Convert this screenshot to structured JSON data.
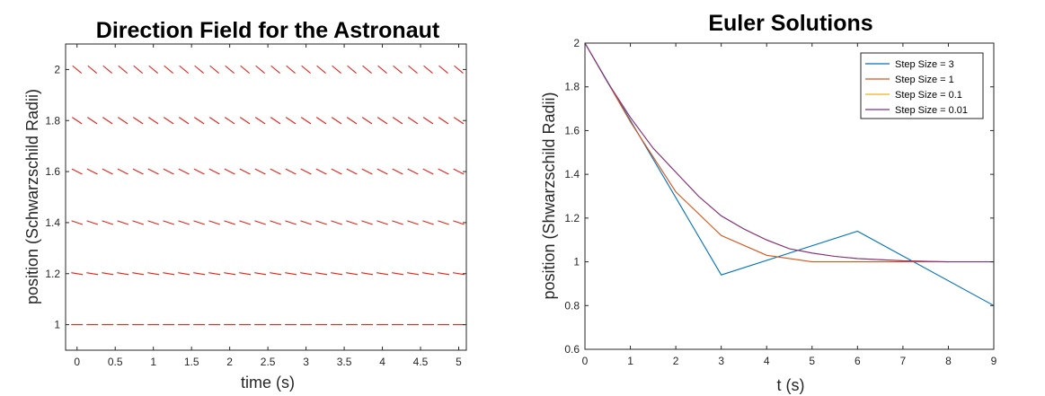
{
  "chart_data": [
    {
      "type": "line",
      "subtype": "direction-field",
      "title": "Direction Field for the Astronaut",
      "xlabel": "time (s)",
      "ylabel": "position (Schwarzschild Radii)",
      "xlim": [
        -0.15,
        5.1
      ],
      "ylim": [
        0.9,
        2.1
      ],
      "xticks": [
        "0",
        "0.5",
        "1",
        "1.5",
        "2",
        "2.5",
        "3",
        "3.5",
        "4",
        "4.5",
        "5"
      ],
      "xtick_values": [
        0,
        0.5,
        1,
        1.5,
        2,
        2.5,
        3,
        3.5,
        4,
        4.5,
        5
      ],
      "yticks": [
        "1",
        "1.2",
        "1.4",
        "1.6",
        "1.8",
        "2"
      ],
      "ytick_values": [
        1,
        1.2,
        1.4,
        1.6,
        1.8,
        2
      ],
      "field_x": [
        0,
        0.2,
        0.4,
        0.6,
        0.8,
        1.0,
        1.2,
        1.4,
        1.6,
        1.8,
        2.0,
        2.2,
        2.4,
        2.6,
        2.8,
        3.0,
        3.2,
        3.4,
        3.6,
        3.8,
        4.0,
        4.2,
        4.4,
        4.6,
        4.8,
        5.0
      ],
      "field_rows": [
        {
          "y": 1.0,
          "slope": 0
        },
        {
          "y": 1.2,
          "slope": -0.2
        },
        {
          "y": 1.4,
          "slope": -0.4
        },
        {
          "y": 1.6,
          "slope": -0.6
        },
        {
          "y": 1.8,
          "slope": -0.8
        },
        {
          "y": 2.0,
          "slope": -1.0
        }
      ],
      "grid": false
    },
    {
      "type": "line",
      "title": "Euler Solutions",
      "xlabel": "t (s)",
      "ylabel": "position (Shwarzschild Radii)",
      "xlim": [
        0,
        9
      ],
      "ylim": [
        0.6,
        2
      ],
      "xticks": [
        "0",
        "1",
        "2",
        "3",
        "4",
        "5",
        "6",
        "7",
        "8",
        "9"
      ],
      "xtick_values": [
        0,
        1,
        2,
        3,
        4,
        5,
        6,
        7,
        8,
        9
      ],
      "yticks": [
        "0.6",
        "0.8",
        "1",
        "1.2",
        "1.4",
        "1.6",
        "1.8",
        "2"
      ],
      "ytick_values": [
        0.6,
        0.8,
        1,
        1.2,
        1.4,
        1.6,
        1.8,
        2
      ],
      "legend_position": "top-right",
      "grid": false,
      "series": [
        {
          "name": "Step Size = 3",
          "color": "#0072BD",
          "x": [
            0,
            3,
            6,
            9
          ],
          "y": [
            2,
            0.94,
            1.14,
            0.8
          ]
        },
        {
          "name": "Step Size = 1",
          "color": "#D95319",
          "x": [
            0,
            1,
            2,
            3,
            4,
            5,
            6,
            7,
            8
          ],
          "y": [
            2,
            1.64,
            1.32,
            1.12,
            1.03,
            1.0,
            1.0,
            1.0,
            1.0
          ]
        },
        {
          "name": "Step Size = 0.1",
          "color": "#EDB120",
          "x": [
            0,
            0.5,
            1,
            1.5,
            2,
            2.5,
            3,
            3.5,
            4,
            4.5,
            5,
            5.5,
            6,
            7,
            8
          ],
          "y": [
            2,
            1.82,
            1.66,
            1.52,
            1.41,
            1.3,
            1.21,
            1.15,
            1.1,
            1.06,
            1.04,
            1.025,
            1.015,
            1.005,
            1.0
          ]
        },
        {
          "name": "Step Size = 0.01",
          "color": "#7E2F8E",
          "x": [
            0,
            0.5,
            1,
            1.5,
            2,
            2.5,
            3,
            3.5,
            4,
            4.5,
            5,
            5.5,
            6,
            7,
            8,
            9
          ],
          "y": [
            2,
            1.82,
            1.66,
            1.52,
            1.41,
            1.3,
            1.21,
            1.15,
            1.1,
            1.06,
            1.04,
            1.025,
            1.015,
            1.005,
            1.0,
            1.0
          ]
        }
      ]
    }
  ]
}
